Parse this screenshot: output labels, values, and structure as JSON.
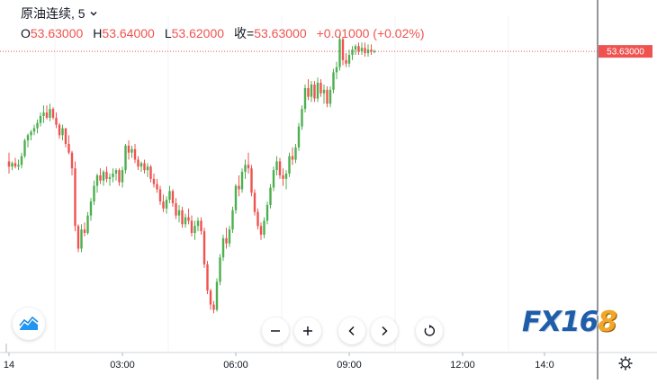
{
  "header": {
    "symbol": "原油连续",
    "separator": ",",
    "interval": "5",
    "open_label": "O",
    "open": "53.63000",
    "high_label": "H",
    "high": "53.64000",
    "low_label": "L",
    "low": "53.62000",
    "close_label": "收=",
    "close": "53.63000",
    "change": "+0.01000 (+0.02%)"
  },
  "last_price_label": "53.63000",
  "logo": {
    "fx": "FX16",
    "num": "8"
  },
  "icons": {
    "chevron": "chevron-down-icon",
    "zoom_out": "minus-icon",
    "zoom_in": "plus-icon",
    "scroll_left": "chevron-left-icon",
    "scroll_right": "chevron-right-icon",
    "reset": "reset-icon",
    "chart_type": "area-chart-icon",
    "settings": "gear-icon"
  },
  "colors": {
    "up": "#4caf50",
    "down": "#ef5350",
    "accent": "#1f5da9"
  },
  "chart_data": {
    "type": "candlestick",
    "title": "原油连续, 5",
    "x_ticks": [
      "14",
      "03:00",
      "06:00",
      "09:00",
      "12:00",
      "14:0"
    ],
    "x_tick_positions": [
      0,
      36,
      72,
      108,
      144,
      170
    ],
    "ylim": [
      52.07,
      53.78
    ],
    "last_price": 53.63,
    "last_price_label": "53.63000",
    "candles": [
      [
        53.0,
        53.05,
        52.93,
        52.97
      ],
      [
        52.97,
        53.0,
        52.95,
        52.99
      ],
      [
        52.99,
        53.02,
        52.96,
        52.97
      ],
      [
        52.97,
        53.01,
        52.95,
        52.98
      ],
      [
        52.98,
        53.05,
        52.96,
        53.03
      ],
      [
        53.03,
        53.13,
        53.02,
        53.12
      ],
      [
        53.12,
        53.16,
        53.08,
        53.15
      ],
      [
        53.15,
        53.18,
        53.12,
        53.17
      ],
      [
        53.17,
        53.21,
        53.15,
        53.19
      ],
      [
        53.19,
        53.24,
        53.16,
        53.22
      ],
      [
        53.22,
        53.28,
        53.2,
        53.26
      ],
      [
        53.26,
        53.32,
        53.22,
        53.28
      ],
      [
        53.28,
        53.32,
        53.24,
        53.25
      ],
      [
        53.25,
        53.33,
        53.23,
        53.3
      ],
      [
        53.3,
        53.31,
        53.24,
        53.25
      ],
      [
        53.25,
        53.28,
        53.19,
        53.21
      ],
      [
        53.21,
        53.22,
        53.13,
        53.15
      ],
      [
        53.15,
        53.21,
        53.12,
        53.19
      ],
      [
        53.19,
        53.19,
        53.08,
        53.1
      ],
      [
        53.1,
        53.15,
        53.04,
        53.05
      ],
      [
        53.05,
        53.06,
        52.92,
        52.96
      ],
      [
        52.96,
        53.0,
        52.6,
        52.63
      ],
      [
        52.63,
        52.64,
        52.48,
        52.5
      ],
      [
        52.5,
        52.64,
        52.48,
        52.61
      ],
      [
        52.61,
        52.65,
        52.57,
        52.59
      ],
      [
        52.59,
        52.71,
        52.58,
        52.69
      ],
      [
        52.69,
        52.79,
        52.66,
        52.77
      ],
      [
        52.77,
        52.89,
        52.75,
        52.86
      ],
      [
        52.86,
        52.93,
        52.82,
        52.92
      ],
      [
        52.92,
        52.96,
        52.87,
        52.89
      ],
      [
        52.89,
        52.95,
        52.86,
        52.94
      ],
      [
        52.94,
        52.97,
        52.88,
        52.9
      ],
      [
        52.9,
        52.93,
        52.86,
        52.91
      ],
      [
        52.91,
        52.96,
        52.88,
        52.93
      ],
      [
        52.93,
        52.96,
        52.89,
        52.95
      ],
      [
        52.95,
        52.96,
        52.86,
        52.88
      ],
      [
        52.88,
        52.97,
        52.85,
        52.95
      ],
      [
        52.95,
        53.1,
        52.93,
        53.09
      ],
      [
        53.09,
        53.12,
        53.01,
        53.05
      ],
      [
        53.05,
        53.09,
        53.02,
        53.07
      ],
      [
        53.07,
        53.1,
        52.99,
        53.01
      ],
      [
        53.01,
        53.03,
        52.95,
        52.97
      ],
      [
        52.97,
        53.0,
        52.94,
        52.99
      ],
      [
        52.99,
        53.01,
        52.93,
        52.95
      ],
      [
        52.95,
        52.99,
        52.91,
        52.97
      ],
      [
        52.97,
        52.98,
        52.88,
        52.9
      ],
      [
        52.9,
        52.93,
        52.85,
        52.87
      ],
      [
        52.87,
        52.9,
        52.82,
        52.84
      ],
      [
        52.84,
        52.86,
        52.75,
        52.77
      ],
      [
        52.77,
        52.81,
        52.71,
        52.73
      ],
      [
        52.73,
        52.8,
        52.7,
        52.78
      ],
      [
        52.78,
        52.86,
        52.76,
        52.83
      ],
      [
        52.83,
        52.84,
        52.74,
        52.76
      ],
      [
        52.76,
        52.79,
        52.67,
        52.69
      ],
      [
        52.69,
        52.75,
        52.65,
        52.72
      ],
      [
        52.72,
        52.74,
        52.62,
        52.64
      ],
      [
        52.64,
        52.7,
        52.62,
        52.68
      ],
      [
        52.68,
        52.73,
        52.64,
        52.66
      ],
      [
        52.66,
        52.69,
        52.57,
        52.59
      ],
      [
        52.59,
        52.66,
        52.55,
        52.63
      ],
      [
        52.63,
        52.68,
        52.6,
        52.66
      ],
      [
        52.66,
        52.68,
        52.58,
        52.6
      ],
      [
        52.6,
        52.62,
        52.39,
        52.41
      ],
      [
        52.41,
        52.43,
        52.24,
        52.26
      ],
      [
        52.26,
        52.27,
        52.15,
        52.18
      ],
      [
        52.18,
        52.2,
        52.13,
        52.15
      ],
      [
        52.15,
        52.33,
        52.14,
        52.31
      ],
      [
        52.31,
        52.47,
        52.29,
        52.45
      ],
      [
        52.45,
        52.58,
        52.43,
        52.56
      ],
      [
        52.56,
        52.62,
        52.5,
        52.53
      ],
      [
        52.53,
        52.63,
        52.51,
        52.61
      ],
      [
        52.61,
        52.74,
        52.59,
        52.72
      ],
      [
        52.72,
        52.87,
        52.7,
        52.86
      ],
      [
        52.86,
        52.92,
        52.8,
        52.84
      ],
      [
        52.84,
        52.96,
        52.82,
        52.94
      ],
      [
        52.94,
        53.01,
        52.9,
        52.98
      ],
      [
        52.98,
        53.05,
        52.93,
        52.96
      ],
      [
        52.96,
        52.98,
        52.8,
        52.82
      ],
      [
        52.82,
        52.84,
        52.69,
        52.71
      ],
      [
        52.71,
        52.73,
        52.61,
        52.63
      ],
      [
        52.63,
        52.65,
        52.55,
        52.58
      ],
      [
        52.58,
        52.68,
        52.56,
        52.66
      ],
      [
        52.66,
        52.77,
        52.64,
        52.75
      ],
      [
        52.75,
        52.87,
        52.73,
        52.85
      ],
      [
        52.85,
        52.97,
        52.83,
        52.95
      ],
      [
        52.95,
        53.03,
        52.92,
        53.0
      ],
      [
        53.0,
        53.02,
        52.9,
        52.92
      ],
      [
        52.92,
        52.96,
        52.86,
        52.9
      ],
      [
        52.9,
        52.95,
        52.84,
        52.93
      ],
      [
        52.93,
        53.05,
        52.91,
        53.03
      ],
      [
        53.03,
        53.08,
        52.98,
        53.01
      ],
      [
        53.01,
        53.1,
        52.99,
        53.08
      ],
      [
        53.08,
        53.22,
        53.06,
        53.2
      ],
      [
        53.2,
        53.32,
        53.18,
        53.3
      ],
      [
        53.3,
        53.44,
        53.28,
        53.42
      ],
      [
        53.42,
        53.47,
        53.35,
        53.37
      ],
      [
        53.37,
        53.46,
        53.34,
        53.44
      ],
      [
        53.44,
        53.46,
        53.34,
        53.36
      ],
      [
        53.36,
        53.48,
        53.34,
        53.45
      ],
      [
        53.45,
        53.47,
        53.37,
        53.39
      ],
      [
        53.39,
        53.44,
        53.33,
        53.41
      ],
      [
        53.41,
        53.43,
        53.31,
        53.33
      ],
      [
        53.33,
        53.43,
        53.31,
        53.41
      ],
      [
        53.41,
        53.53,
        53.39,
        53.51
      ],
      [
        53.51,
        53.57,
        53.47,
        53.54
      ],
      [
        53.54,
        53.73,
        53.52,
        53.7
      ],
      [
        53.7,
        53.71,
        53.55,
        53.58
      ],
      [
        53.58,
        53.62,
        53.54,
        53.56
      ],
      [
        53.56,
        53.64,
        53.54,
        53.61
      ],
      [
        53.61,
        53.66,
        53.58,
        53.64
      ],
      [
        53.64,
        53.67,
        53.61,
        53.66
      ],
      [
        53.66,
        53.68,
        53.61,
        53.63
      ],
      [
        53.63,
        53.68,
        53.61,
        53.65
      ],
      [
        53.65,
        53.68,
        53.6,
        53.62
      ],
      [
        53.62,
        53.67,
        53.6,
        53.64
      ],
      [
        53.64,
        53.67,
        53.61,
        53.63
      ],
      [
        53.63,
        53.64,
        53.62,
        53.63
      ]
    ]
  }
}
